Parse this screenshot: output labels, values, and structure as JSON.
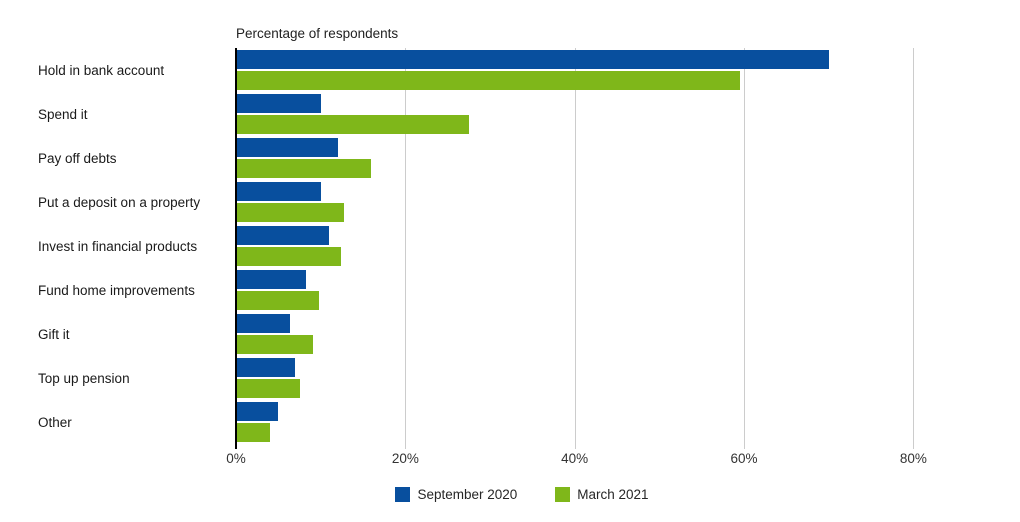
{
  "chart_data": {
    "type": "bar",
    "orientation": "horizontal",
    "title": "Percentage of respondents",
    "xlabel": "",
    "ylabel": "",
    "categories": [
      "Hold in bank account",
      "Spend it",
      "Pay off debts",
      "Put a deposit on a property",
      "Invest in financial products",
      "Fund home improvements",
      "Gift it",
      "Top up pension",
      "Other"
    ],
    "series": [
      {
        "name": "September 2020",
        "color": "#084f9e",
        "values": [
          70,
          10,
          12,
          10,
          11,
          8.3,
          6.4,
          7,
          5
        ]
      },
      {
        "name": "March 2021",
        "color": "#7fb71a",
        "values": [
          59.5,
          27.5,
          16,
          12.7,
          12.4,
          9.8,
          9.1,
          7.5,
          4
        ]
      }
    ],
    "x_axis": {
      "tick_labels": [
        "0%",
        "20%",
        "40%",
        "60%",
        "80%"
      ],
      "tick_values": [
        0,
        20,
        40,
        60,
        80
      ],
      "max": 86.1
    },
    "grid": true,
    "legend_position": "bottom"
  },
  "colors": {
    "gridline": "#cccccc",
    "axis_line": "#000000",
    "text": "#262626",
    "background": "#ffffff"
  }
}
